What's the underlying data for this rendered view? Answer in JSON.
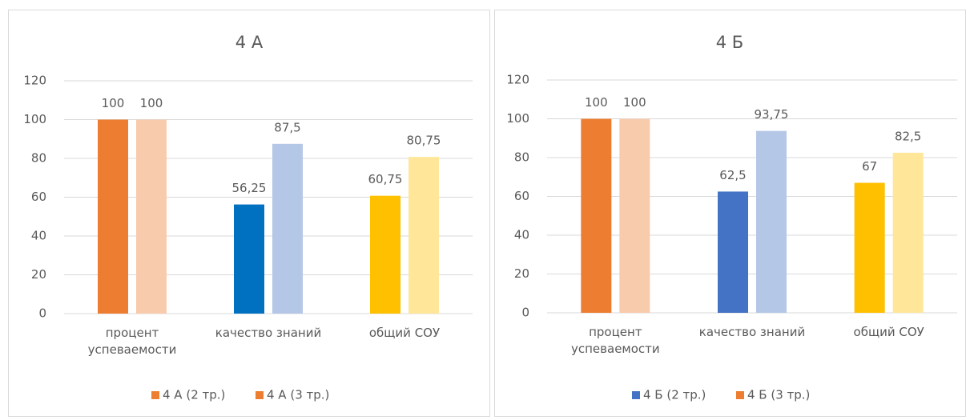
{
  "chart_data": [
    {
      "type": "bar",
      "title": "4 А",
      "categories": [
        "процент успеваемости",
        "качество знаний",
        "общий СОУ"
      ],
      "series": [
        {
          "name": "4 А (2 тр.)",
          "color": "#ed7d31",
          "colors": [
            "#ed7d31",
            "#0070c0",
            "#ffc000"
          ],
          "values": [
            100,
            56.25,
            60.75
          ],
          "value_labels": [
            "100",
            "56,25",
            "60,75"
          ]
        },
        {
          "name": "4 А (3 тр.)",
          "color": "#ed7d31",
          "colors": [
            "#f8cbad",
            "#b4c7e7",
            "#ffe699"
          ],
          "values": [
            100,
            87.5,
            80.75
          ],
          "value_labels": [
            "100",
            "87,5",
            "80,75"
          ]
        }
      ],
      "ylim": [
        0,
        120
      ],
      "yticks": [
        0,
        20,
        40,
        60,
        80,
        100,
        120
      ],
      "grid": true,
      "legend": "bottom"
    },
    {
      "type": "bar",
      "title": "4 Б",
      "categories": [
        "процент успеваемости",
        "качество знаний",
        "общий СОУ"
      ],
      "series": [
        {
          "name": "4 Б (2 тр.)",
          "color": "#4472c4",
          "colors": [
            "#ed7d31",
            "#4472c4",
            "#ffc000"
          ],
          "values": [
            100,
            62.5,
            67
          ],
          "value_labels": [
            "100",
            "62,5",
            "67"
          ]
        },
        {
          "name": "4 Б (3 тр.)",
          "color": "#ed7d31",
          "colors": [
            "#f8cbad",
            "#b4c7e7",
            "#ffe699"
          ],
          "values": [
            100,
            93.75,
            82.5
          ],
          "value_labels": [
            "100",
            "93,75",
            "82,5"
          ]
        }
      ],
      "ylim": [
        0,
        120
      ],
      "yticks": [
        0,
        20,
        40,
        60,
        80,
        100,
        120
      ],
      "grid": true,
      "legend": "bottom"
    }
  ]
}
